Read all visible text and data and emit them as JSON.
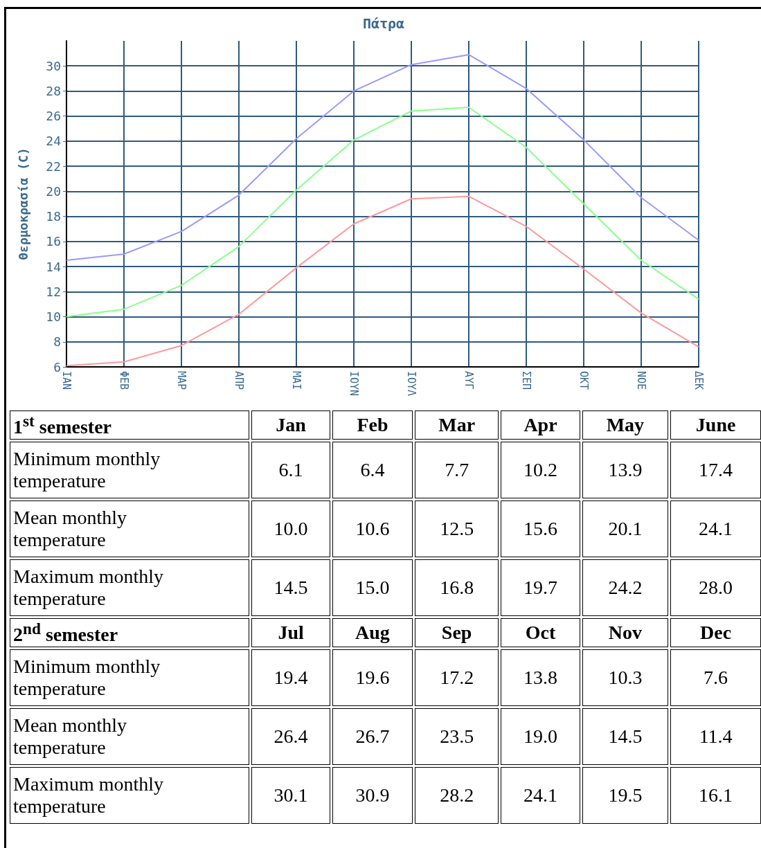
{
  "chart_data": [
    {
      "type": "line",
      "title": "Πάτρα",
      "ylabel": "Θερμοκρασία (C)",
      "categories": [
        "ΙΑΝ",
        "ΦΕΒ",
        "ΜΑΡ",
        "ΑΠΡ",
        "ΜΑΙ",
        "ΙΟΥΝ",
        "ΙΟΥΛ",
        "ΑΥΓ",
        "ΣΕΠ",
        "ΟΚΤ",
        "ΝΟΕ",
        "ΔΕΚ"
      ],
      "series": [
        {
          "color": "#ff9999",
          "values": [
            6.1,
            6.4,
            7.7,
            10.2,
            13.9,
            17.4,
            19.4,
            19.6,
            17.2,
            13.8,
            10.3,
            7.6
          ]
        },
        {
          "color": "#88ff88",
          "values": [
            10.0,
            10.6,
            12.5,
            15.6,
            20.1,
            24.1,
            26.4,
            26.7,
            23.5,
            19.0,
            14.5,
            11.4
          ]
        },
        {
          "color": "#9999ff",
          "values": [
            14.5,
            15.0,
            16.8,
            19.7,
            24.2,
            28.0,
            30.1,
            30.9,
            28.2,
            24.1,
            19.5,
            16.1
          ]
        }
      ],
      "ylim": [
        6,
        32
      ],
      "yticks": [
        6,
        8,
        10,
        12,
        14,
        16,
        18,
        20,
        22,
        24,
        26,
        28,
        30
      ],
      "grid": true,
      "marker": "none",
      "line_style": "solid"
    },
    {
      "type": "other",
      "annotations": [
        "1$^{st}$ semester",
        "Jan",
        "Feb",
        "Mar",
        "Apr",
        "May",
        "June",
        "Minimum monthly temperature",
        "6.1",
        "6.4",
        "7.7",
        "10.2",
        "13.9",
        "17.4",
        "Mean monthly temperature",
        "10.0",
        "10.6",
        "12.5",
        "15.6",
        "20.1",
        "24.1",
        "Maximum monthly temperature",
        "14.5",
        "15.0",
        "16.8",
        "19.7",
        "24.2",
        "28.0",
        "2$^{nd}$ semester",
        "Jul",
        "Aug",
        "Sep",
        "Oct",
        "Nov",
        "Dec",
        "Minimum monthly temperature",
        "19.4",
        "19.6",
        "17.2",
        "13.8",
        "10.3",
        "7.6",
        "Mean monthly temperature",
        "26.4",
        "26.7",
        "23.5",
        "19.0",
        "14.5",
        "11.4",
        "Maximum monthly temperature",
        "30.1",
        "30.9",
        "28.2",
        "24.1",
        "19.5",
        "16.1"
      ]
    }
  ]
}
